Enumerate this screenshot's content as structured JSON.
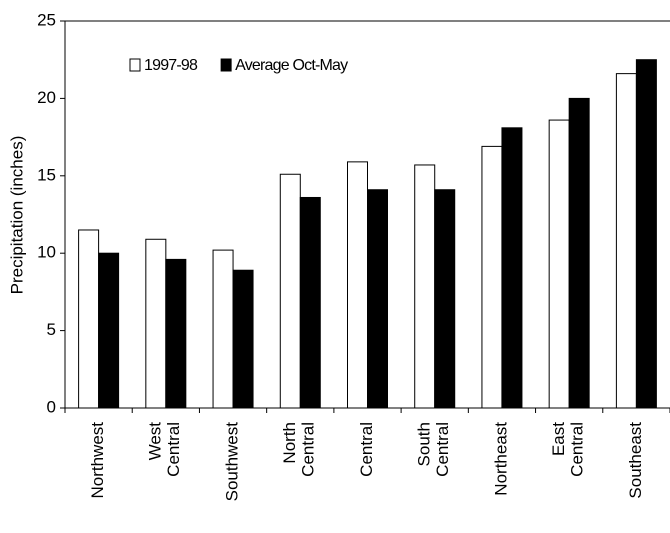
{
  "chart_data": {
    "type": "bar",
    "y_label": "Precipitation (inches)",
    "categories": [
      "Northwest",
      "West Central",
      "Southwest",
      "North Central",
      "Central",
      "South Central",
      "Northeast",
      "East Central",
      "Southeast"
    ],
    "series": [
      {
        "name": "1997-98",
        "color": "#ffffff",
        "values": [
          11.5,
          10.9,
          10.2,
          15.1,
          15.9,
          15.7,
          16.9,
          18.6,
          21.6
        ]
      },
      {
        "name": "Average Oct-May",
        "color": "#000000",
        "values": [
          10.0,
          9.6,
          8.9,
          13.6,
          14.1,
          14.1,
          18.1,
          20.0,
          22.5
        ]
      }
    ],
    "ylim": [
      0,
      25
    ],
    "yticks": [
      0,
      5,
      10,
      15,
      20,
      25
    ],
    "grid": false,
    "legend": "top-left"
  }
}
